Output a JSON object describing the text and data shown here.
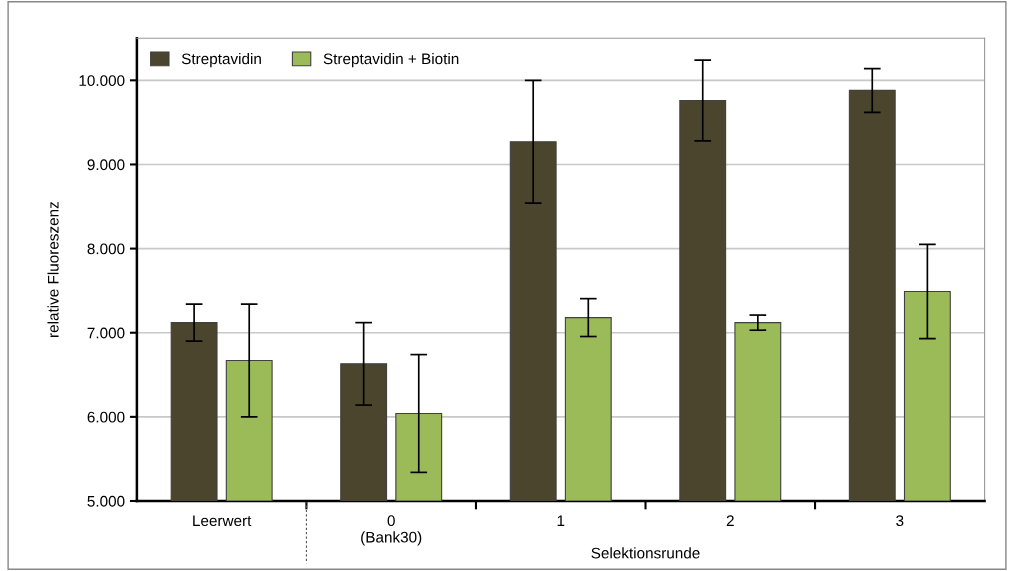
{
  "chart_data": {
    "type": "bar",
    "ylabel": "relative Fluoreszenz",
    "xlabel": "Selektionsrunde",
    "categories": [
      "Leerwert",
      "0\n(Bank30)",
      "1",
      "2",
      "3"
    ],
    "series": [
      {
        "name": "Streptavidin",
        "color": "#4a452c",
        "values": [
          7120,
          6630,
          9270,
          9760,
          9880
        ],
        "errors": [
          220,
          490,
          730,
          480,
          260
        ]
      },
      {
        "name": "Streptavidin + Biotin",
        "color": "#9bbb59",
        "values": [
          6670,
          6040,
          7180,
          7120,
          7490
        ],
        "errors": [
          670,
          700,
          225,
          90,
          560
        ]
      }
    ],
    "ylim": [
      5000,
      10500
    ],
    "yticks": [
      {
        "value": 5000,
        "label": "5.000"
      },
      {
        "value": 6000,
        "label": "6.000"
      },
      {
        "value": 7000,
        "label": "7.000"
      },
      {
        "value": 8000,
        "label": "8.000"
      },
      {
        "value": 9000,
        "label": "9.000"
      },
      {
        "value": 10000,
        "label": "10.000"
      }
    ],
    "grid": "y",
    "legend": "top left"
  }
}
